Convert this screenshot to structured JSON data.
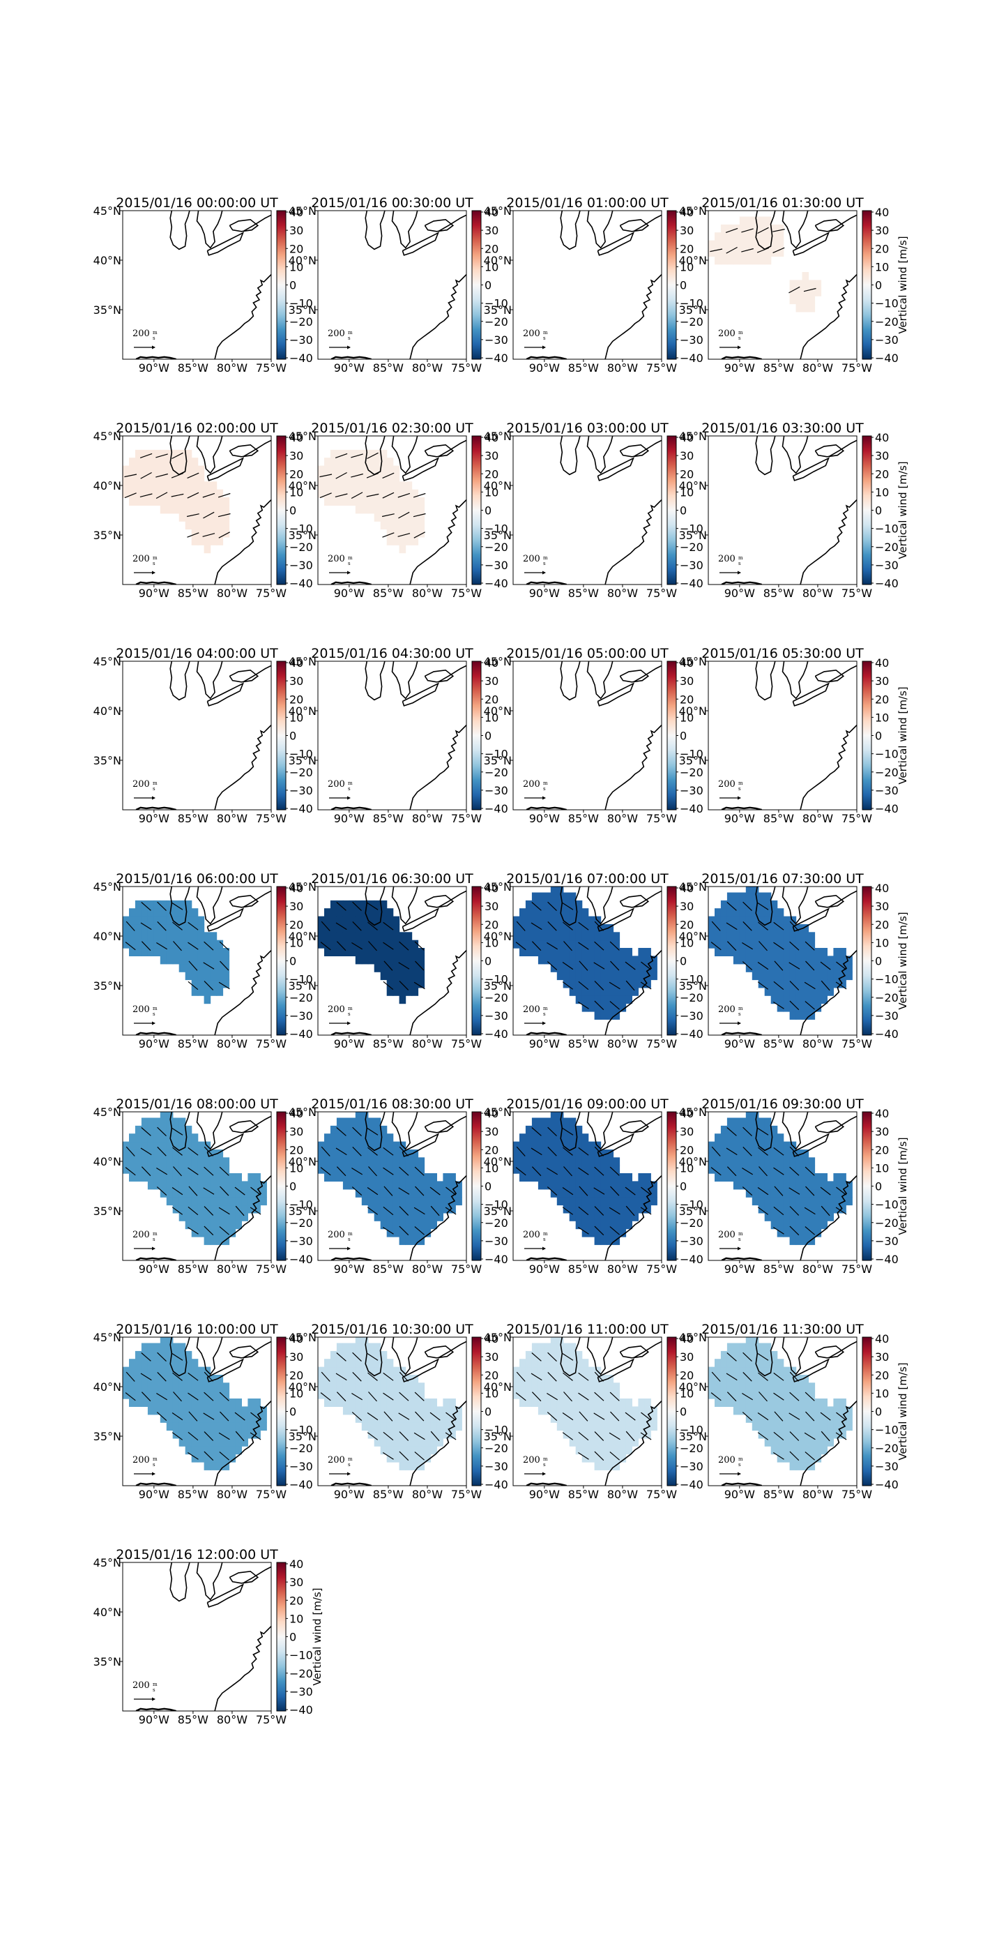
{
  "figure": {
    "panel_titles": [
      "2015/01/16 00:00:00 UT",
      "2015/01/16 00:30:00 UT",
      "2015/01/16 01:00:00 UT",
      "2015/01/16 01:30:00 UT",
      "2015/01/16 02:00:00 UT",
      "2015/01/16 02:30:00 UT",
      "2015/01/16 03:00:00 UT",
      "2015/01/16 03:30:00 UT",
      "2015/01/16 04:00:00 UT",
      "2015/01/16 04:30:00 UT",
      "2015/01/16 05:00:00 UT",
      "2015/01/16 05:30:00 UT",
      "2015/01/16 06:00:00 UT",
      "2015/01/16 06:30:00 UT",
      "2015/01/16 07:00:00 UT",
      "2015/01/16 07:30:00 UT",
      "2015/01/16 08:00:00 UT",
      "2015/01/16 08:30:00 UT",
      "2015/01/16 09:00:00 UT",
      "2015/01/16 09:30:00 UT",
      "2015/01/16 10:00:00 UT",
      "2015/01/16 10:30:00 UT",
      "2015/01/16 11:00:00 UT",
      "2015/01/16 11:30:00 UT",
      "2015/01/16 12:00:00 UT"
    ],
    "colorbar_label": "Vertical wind [m/s]",
    "colorbar_ticks": [
      "40",
      "30",
      "20",
      "10",
      "0",
      "−10",
      "−20",
      "−30",
      "−40"
    ],
    "lat_ticks": [
      "45°N",
      "40°N",
      "35°N"
    ],
    "lon_ticks": [
      "90°W",
      "85°W",
      "80°W",
      "75°W"
    ],
    "scale_label": "200",
    "scale_unit_top": "m",
    "scale_unit_bottom": "s"
  },
  "chart_data": {
    "type": "heatmap",
    "colorbar": {
      "label": "Vertical wind [m/s]",
      "range": [
        -40,
        40
      ],
      "colormap": "RdBu_r"
    },
    "axes": {
      "lon_range": [
        -94,
        -75
      ],
      "lat_range": [
        30,
        45
      ]
    },
    "quiver_reference": {
      "magnitude": 200,
      "unit": "m/s"
    },
    "panels": [
      {
        "time": "2015/01/16 00:00:00 UT",
        "vertical_wind": null,
        "region": "none"
      },
      {
        "time": "2015/01/16 00:30:00 UT",
        "vertical_wind": null,
        "region": "none"
      },
      {
        "time": "2015/01/16 01:00:00 UT",
        "vertical_wind": null,
        "region": "none"
      },
      {
        "time": "2015/01/16 01:30:00 UT",
        "vertical_wind": 3,
        "region": "small"
      },
      {
        "time": "2015/01/16 02:00:00 UT",
        "vertical_wind": 4,
        "region": "medium"
      },
      {
        "time": "2015/01/16 02:30:00 UT",
        "vertical_wind": 3,
        "region": "medium"
      },
      {
        "time": "2015/01/16 03:00:00 UT",
        "vertical_wind": null,
        "region": "none"
      },
      {
        "time": "2015/01/16 03:30:00 UT",
        "vertical_wind": null,
        "region": "none"
      },
      {
        "time": "2015/01/16 04:00:00 UT",
        "vertical_wind": null,
        "region": "none"
      },
      {
        "time": "2015/01/16 04:30:00 UT",
        "vertical_wind": null,
        "region": "none"
      },
      {
        "time": "2015/01/16 05:00:00 UT",
        "vertical_wind": null,
        "region": "none"
      },
      {
        "time": "2015/01/16 05:30:00 UT",
        "vertical_wind": null,
        "region": "none"
      },
      {
        "time": "2015/01/16 06:00:00 UT",
        "vertical_wind": -25,
        "region": "medium"
      },
      {
        "time": "2015/01/16 06:30:00 UT",
        "vertical_wind": -38,
        "region": "medium"
      },
      {
        "time": "2015/01/16 07:00:00 UT",
        "vertical_wind": -33,
        "region": "large"
      },
      {
        "time": "2015/01/16 07:30:00 UT",
        "vertical_wind": -30,
        "region": "large"
      },
      {
        "time": "2015/01/16 08:00:00 UT",
        "vertical_wind": -23,
        "region": "large"
      },
      {
        "time": "2015/01/16 08:30:00 UT",
        "vertical_wind": -28,
        "region": "large"
      },
      {
        "time": "2015/01/16 09:00:00 UT",
        "vertical_wind": -33,
        "region": "large"
      },
      {
        "time": "2015/01/16 09:30:00 UT",
        "vertical_wind": -28,
        "region": "large"
      },
      {
        "time": "2015/01/16 10:00:00 UT",
        "vertical_wind": -22,
        "region": "large"
      },
      {
        "time": "2015/01/16 10:30:00 UT",
        "vertical_wind": -10,
        "region": "large"
      },
      {
        "time": "2015/01/16 11:00:00 UT",
        "vertical_wind": -9,
        "region": "large"
      },
      {
        "time": "2015/01/16 11:30:00 UT",
        "vertical_wind": -15,
        "region": "large"
      },
      {
        "time": "2015/01/16 12:00:00 UT",
        "vertical_wind": null,
        "region": "none"
      }
    ]
  }
}
